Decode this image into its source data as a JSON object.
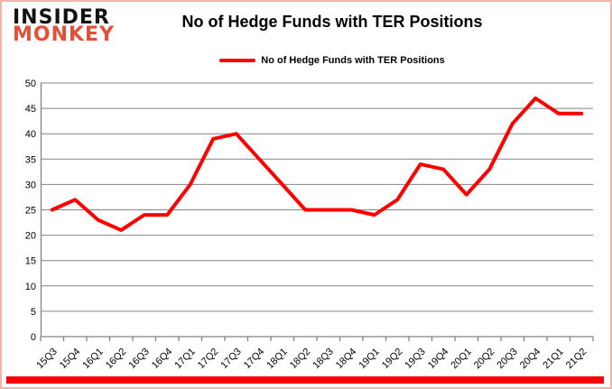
{
  "brand": {
    "line1": "INSIDER",
    "line2": "MONKEY",
    "accent_color": "#e2503a"
  },
  "header": {
    "title": "No of Hedge Funds with TER Positions"
  },
  "legend": {
    "label": "No of Hedge Funds with TER Positions",
    "line_color": "#ff0000"
  },
  "chart_data": {
    "type": "line",
    "title": "No of Hedge Funds with TER Positions",
    "categories": [
      "15Q3",
      "15Q4",
      "16Q1",
      "16Q2",
      "16Q3",
      "16Q4",
      "17Q1",
      "17Q2",
      "17Q3",
      "17Q4",
      "18Q1",
      "18Q2",
      "18Q3",
      "18Q4",
      "19Q1",
      "19Q2",
      "19Q3",
      "19Q4",
      "20Q1",
      "20Q2",
      "20Q3",
      "20Q4",
      "21Q1",
      "21Q2"
    ],
    "series": [
      {
        "name": "No of Hedge Funds with TER Positions",
        "color": "#ff0000",
        "values": [
          25,
          27,
          23,
          21,
          24,
          24,
          30,
          39,
          40,
          35,
          30,
          25,
          25,
          25,
          24,
          27,
          34,
          33,
          28,
          33,
          42,
          47,
          44,
          44
        ]
      }
    ],
    "xlabel": "",
    "ylabel": "",
    "ylim": [
      0,
      50
    ],
    "ytick_step": 5,
    "grid": true,
    "legend_position": "top-center",
    "x_label_rotation_deg": 45
  },
  "colors": {
    "grid": "#848484",
    "axis": "#848484",
    "tick_labels": "#000000",
    "bottom_bar": "#fe0000",
    "frame_border": "#f2b4aa"
  }
}
